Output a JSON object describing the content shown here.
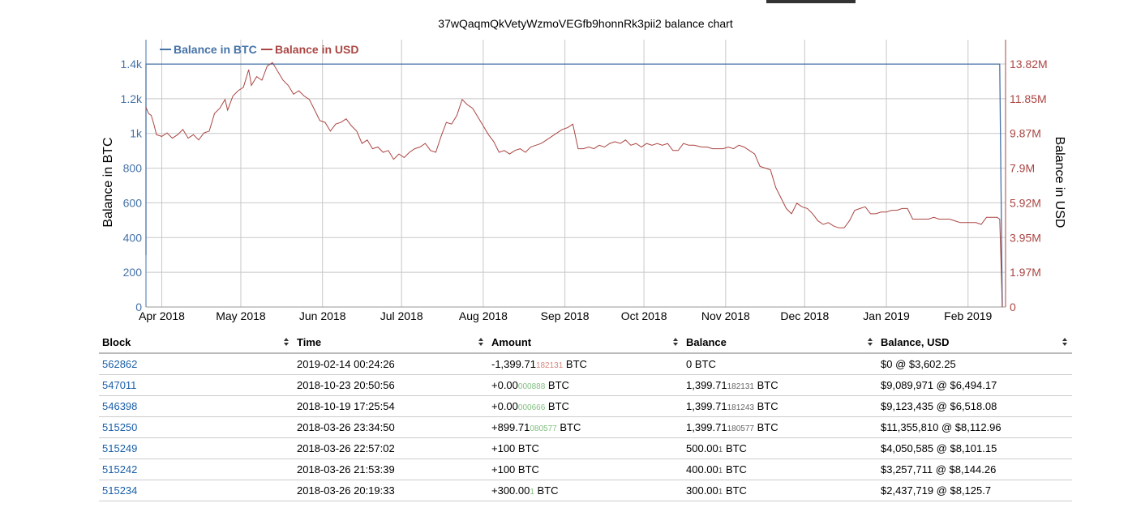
{
  "chart_data": {
    "type": "line",
    "title": "37wQaqmQkVetyWzmoVEGfb9honnRk3pii2 balance chart",
    "y_left_label": "Balance in BTC",
    "y_right_label": "Balance in USD",
    "legend": [
      "Balance in BTC",
      "Balance in USD"
    ],
    "legend_position": "top-left",
    "x_ticks": [
      "Apr 2018",
      "May 2018",
      "Jun 2018",
      "Jul 2018",
      "Aug 2018",
      "Sep 2018",
      "Oct 2018",
      "Nov 2018",
      "Dec 2018",
      "Jan 2019",
      "Feb 2019"
    ],
    "y_left_ticks": [
      "0",
      "200",
      "400",
      "600",
      "800",
      "1k",
      "1.2k",
      "1.4k"
    ],
    "y_right_ticks": [
      "0",
      "1.97M",
      "3.95M",
      "5.92M",
      "7.9M",
      "9.87M",
      "11.85M",
      "13.82M"
    ],
    "y_left_lim": [
      0,
      1400
    ],
    "y_right_lim": [
      0,
      13820000
    ],
    "x_lim": [
      "2018-03-26",
      "2019-02-14"
    ],
    "grid": true,
    "colors": {
      "btc": "#4572a7",
      "usd": "#aa4643"
    },
    "series": [
      {
        "name": "Balance in BTC",
        "points": [
          [
            "2018-03-26",
            300
          ],
          [
            "2018-03-26",
            400
          ],
          [
            "2018-03-26",
            500
          ],
          [
            "2018-03-26",
            1399.7
          ],
          [
            "2019-02-13",
            1399.7
          ],
          [
            "2019-02-14",
            0
          ]
        ]
      },
      {
        "name": "Balance in USD",
        "points": [
          [
            "2018-03-26",
            11.36
          ],
          [
            "2018-03-27",
            11.0
          ],
          [
            "2018-03-28",
            10.9
          ],
          [
            "2018-03-29",
            10.4
          ],
          [
            "2018-03-30",
            9.8
          ],
          [
            "2018-04-01",
            9.7
          ],
          [
            "2018-04-03",
            9.9
          ],
          [
            "2018-04-05",
            9.6
          ],
          [
            "2018-04-07",
            9.8
          ],
          [
            "2018-04-09",
            10.1
          ],
          [
            "2018-04-11",
            9.6
          ],
          [
            "2018-04-13",
            9.8
          ],
          [
            "2018-04-15",
            9.5
          ],
          [
            "2018-04-17",
            9.9
          ],
          [
            "2018-04-19",
            10.0
          ],
          [
            "2018-04-21",
            11.0
          ],
          [
            "2018-04-23",
            11.3
          ],
          [
            "2018-04-25",
            11.8
          ],
          [
            "2018-04-26",
            11.2
          ],
          [
            "2018-04-28",
            12.0
          ],
          [
            "2018-04-30",
            12.3
          ],
          [
            "2018-05-02",
            12.5
          ],
          [
            "2018-05-04",
            13.5
          ],
          [
            "2018-05-05",
            12.6
          ],
          [
            "2018-05-07",
            13.1
          ],
          [
            "2018-05-09",
            12.9
          ],
          [
            "2018-05-11",
            13.7
          ],
          [
            "2018-05-13",
            13.9
          ],
          [
            "2018-05-15",
            13.4
          ],
          [
            "2018-05-17",
            12.9
          ],
          [
            "2018-05-19",
            12.6
          ],
          [
            "2018-05-21",
            12.1
          ],
          [
            "2018-05-23",
            12.3
          ],
          [
            "2018-05-25",
            12.0
          ],
          [
            "2018-05-27",
            11.8
          ],
          [
            "2018-05-29",
            11.2
          ],
          [
            "2018-05-31",
            10.6
          ],
          [
            "2018-06-02",
            10.5
          ],
          [
            "2018-06-04",
            10.0
          ],
          [
            "2018-06-06",
            10.4
          ],
          [
            "2018-06-08",
            10.5
          ],
          [
            "2018-06-10",
            10.7
          ],
          [
            "2018-06-12",
            10.3
          ],
          [
            "2018-06-14",
            10.0
          ],
          [
            "2018-06-16",
            9.3
          ],
          [
            "2018-06-18",
            9.5
          ],
          [
            "2018-06-20",
            9.0
          ],
          [
            "2018-06-22",
            9.1
          ],
          [
            "2018-06-24",
            8.8
          ],
          [
            "2018-06-26",
            8.9
          ],
          [
            "2018-06-28",
            8.4
          ],
          [
            "2018-06-30",
            8.7
          ],
          [
            "2018-07-02",
            8.5
          ],
          [
            "2018-07-04",
            8.8
          ],
          [
            "2018-07-06",
            9.0
          ],
          [
            "2018-07-08",
            9.1
          ],
          [
            "2018-07-10",
            9.3
          ],
          [
            "2018-07-12",
            8.9
          ],
          [
            "2018-07-14",
            8.8
          ],
          [
            "2018-07-16",
            9.7
          ],
          [
            "2018-07-18",
            10.5
          ],
          [
            "2018-07-20",
            10.4
          ],
          [
            "2018-07-22",
            10.9
          ],
          [
            "2018-07-24",
            11.8
          ],
          [
            "2018-07-26",
            11.5
          ],
          [
            "2018-07-28",
            11.3
          ],
          [
            "2018-07-30",
            10.8
          ],
          [
            "2018-08-01",
            10.3
          ],
          [
            "2018-08-03",
            9.8
          ],
          [
            "2018-08-05",
            9.4
          ],
          [
            "2018-08-07",
            8.8
          ],
          [
            "2018-08-09",
            8.9
          ],
          [
            "2018-08-11",
            8.7
          ],
          [
            "2018-08-13",
            8.9
          ],
          [
            "2018-08-15",
            9.0
          ],
          [
            "2018-08-17",
            8.8
          ],
          [
            "2018-08-19",
            9.1
          ],
          [
            "2018-08-21",
            9.2
          ],
          [
            "2018-08-23",
            9.3
          ],
          [
            "2018-08-25",
            9.5
          ],
          [
            "2018-08-27",
            9.7
          ],
          [
            "2018-08-29",
            9.9
          ],
          [
            "2018-08-31",
            10.1
          ],
          [
            "2018-09-02",
            10.2
          ],
          [
            "2018-09-04",
            10.4
          ],
          [
            "2018-09-06",
            9.0
          ],
          [
            "2018-09-08",
            9.0
          ],
          [
            "2018-09-10",
            9.1
          ],
          [
            "2018-09-12",
            9.0
          ],
          [
            "2018-09-14",
            9.2
          ],
          [
            "2018-09-16",
            9.1
          ],
          [
            "2018-09-18",
            9.3
          ],
          [
            "2018-09-20",
            9.4
          ],
          [
            "2018-09-22",
            9.3
          ],
          [
            "2018-09-24",
            9.5
          ],
          [
            "2018-09-26",
            9.2
          ],
          [
            "2018-09-28",
            9.3
          ],
          [
            "2018-09-30",
            9.1
          ],
          [
            "2018-10-02",
            9.3
          ],
          [
            "2018-10-04",
            9.2
          ],
          [
            "2018-10-06",
            9.3
          ],
          [
            "2018-10-08",
            9.2
          ],
          [
            "2018-10-10",
            9.3
          ],
          [
            "2018-10-12",
            8.9
          ],
          [
            "2018-10-14",
            8.9
          ],
          [
            "2018-10-16",
            9.3
          ],
          [
            "2018-10-18",
            9.2
          ],
          [
            "2018-10-20",
            9.2
          ],
          [
            "2018-10-23",
            9.1
          ],
          [
            "2018-10-25",
            9.1
          ],
          [
            "2018-10-27",
            9.0
          ],
          [
            "2018-10-29",
            9.0
          ],
          [
            "2018-10-31",
            9.0
          ],
          [
            "2018-11-02",
            9.1
          ],
          [
            "2018-11-04",
            9.0
          ],
          [
            "2018-11-06",
            9.2
          ],
          [
            "2018-11-08",
            9.1
          ],
          [
            "2018-11-10",
            8.9
          ],
          [
            "2018-11-12",
            8.7
          ],
          [
            "2018-11-14",
            8.0
          ],
          [
            "2018-11-16",
            7.9
          ],
          [
            "2018-11-18",
            7.8
          ],
          [
            "2018-11-20",
            6.8
          ],
          [
            "2018-11-22",
            6.2
          ],
          [
            "2018-11-24",
            5.6
          ],
          [
            "2018-11-26",
            5.3
          ],
          [
            "2018-11-28",
            5.9
          ],
          [
            "2018-11-30",
            5.7
          ],
          [
            "2018-12-02",
            5.6
          ],
          [
            "2018-12-04",
            5.3
          ],
          [
            "2018-12-06",
            4.9
          ],
          [
            "2018-12-08",
            4.7
          ],
          [
            "2018-12-10",
            4.8
          ],
          [
            "2018-12-12",
            4.6
          ],
          [
            "2018-12-14",
            4.5
          ],
          [
            "2018-12-16",
            4.5
          ],
          [
            "2018-12-18",
            4.9
          ],
          [
            "2018-12-20",
            5.5
          ],
          [
            "2018-12-22",
            5.6
          ],
          [
            "2018-12-24",
            5.7
          ],
          [
            "2018-12-26",
            5.3
          ],
          [
            "2018-12-28",
            5.3
          ],
          [
            "2018-12-30",
            5.4
          ],
          [
            "2019-01-01",
            5.4
          ],
          [
            "2019-01-03",
            5.5
          ],
          [
            "2019-01-05",
            5.5
          ],
          [
            "2019-01-07",
            5.6
          ],
          [
            "2019-01-09",
            5.6
          ],
          [
            "2019-01-11",
            5.0
          ],
          [
            "2019-01-13",
            5.0
          ],
          [
            "2019-01-15",
            5.0
          ],
          [
            "2019-01-17",
            5.0
          ],
          [
            "2019-01-19",
            5.1
          ],
          [
            "2019-01-21",
            5.0
          ],
          [
            "2019-01-23",
            5.0
          ],
          [
            "2019-01-25",
            5.0
          ],
          [
            "2019-01-27",
            4.9
          ],
          [
            "2019-01-29",
            4.8
          ],
          [
            "2019-01-31",
            4.8
          ],
          [
            "2019-02-02",
            4.8
          ],
          [
            "2019-02-04",
            4.8
          ],
          [
            "2019-02-06",
            4.7
          ],
          [
            "2019-02-08",
            5.1
          ],
          [
            "2019-02-10",
            5.1
          ],
          [
            "2019-02-12",
            5.1
          ],
          [
            "2019-02-13",
            5.0
          ],
          [
            "2019-02-14",
            0
          ]
        ]
      }
    ]
  },
  "table": {
    "headers": [
      "Block",
      "Time",
      "Amount",
      "Balance",
      "Balance, USD"
    ],
    "rows": [
      {
        "block": "562862",
        "time": "2019-02-14 00:24:26",
        "amt_main": "-1,399.71",
        "amt_small": "182131",
        "amt_unit": " BTC",
        "amt_sign": "neg",
        "bal_main": "0 BTC",
        "bal_small": "",
        "bal_unit": "",
        "usd": "$0 @ $3,602.25"
      },
      {
        "block": "547011",
        "time": "2018-10-23 20:50:56",
        "amt_main": "+0.00",
        "amt_small": "000888",
        "amt_unit": " BTC",
        "amt_sign": "pos",
        "bal_main": "1,399.71",
        "bal_small": "182131",
        "bal_unit": " BTC",
        "usd": "$9,089,971 @ $6,494.17"
      },
      {
        "block": "546398",
        "time": "2018-10-19 17:25:54",
        "amt_main": "+0.00",
        "amt_small": "000666",
        "amt_unit": " BTC",
        "amt_sign": "pos",
        "bal_main": "1,399.71",
        "bal_small": "181243",
        "bal_unit": " BTC",
        "usd": "$9,123,435 @ $6,518.08"
      },
      {
        "block": "515250",
        "time": "2018-03-26 23:34:50",
        "amt_main": "+899.71",
        "amt_small": "080577",
        "amt_unit": " BTC",
        "amt_sign": "pos",
        "bal_main": "1,399.71",
        "bal_small": "180577",
        "bal_unit": " BTC",
        "usd": "$11,355,810 @ $8,112.96"
      },
      {
        "block": "515249",
        "time": "2018-03-26 22:57:02",
        "amt_main": "+100 BTC",
        "amt_small": "",
        "amt_unit": "",
        "amt_sign": "pos",
        "bal_main": "500.00",
        "bal_small": "1",
        "bal_unit": " BTC",
        "usd": "$4,050,585 @ $8,101.15"
      },
      {
        "block": "515242",
        "time": "2018-03-26 21:53:39",
        "amt_main": "+100 BTC",
        "amt_small": "",
        "amt_unit": "",
        "amt_sign": "pos",
        "bal_main": "400.00",
        "bal_small": "1",
        "bal_unit": " BTC",
        "usd": "$3,257,711 @ $8,144.26"
      },
      {
        "block": "515234",
        "time": "2018-03-26 20:19:33",
        "amt_main": "+300.00",
        "amt_small": "1",
        "amt_unit": " BTC",
        "amt_sign": "pos",
        "bal_main": "300.00",
        "bal_small": "1",
        "bal_unit": " BTC",
        "usd": "$2,437,719 @ $8,125.7"
      }
    ]
  }
}
